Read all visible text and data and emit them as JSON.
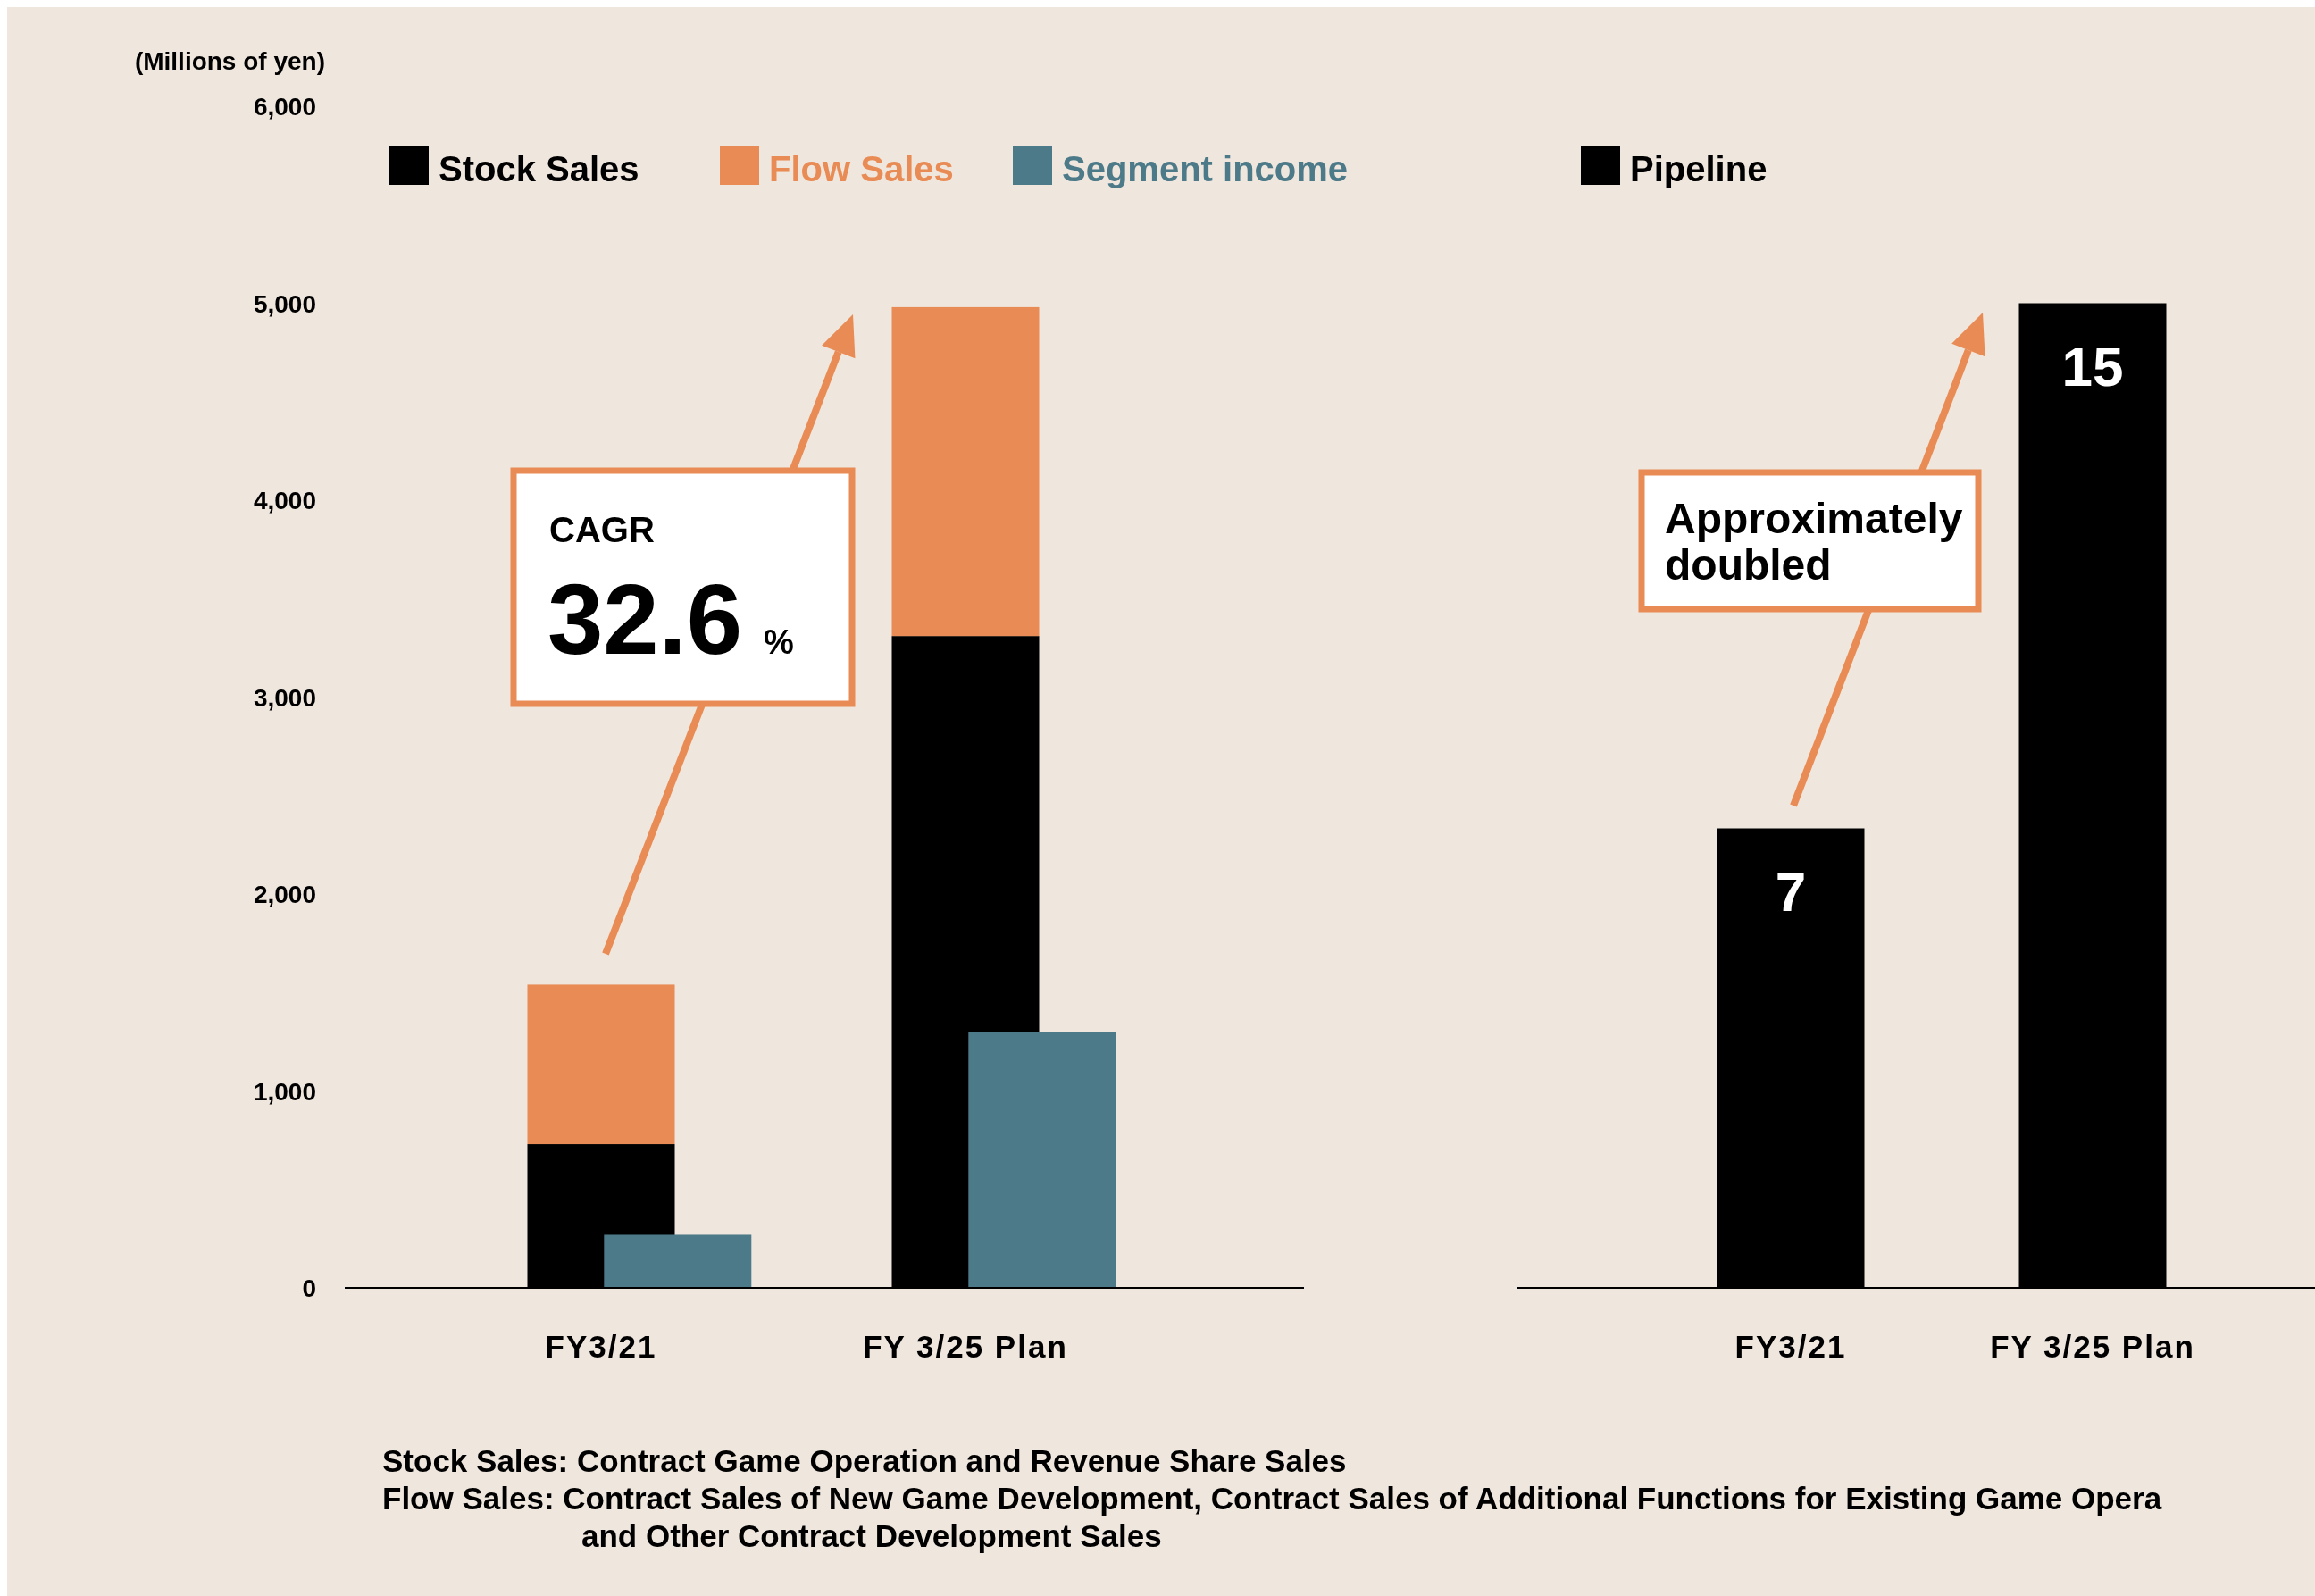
{
  "chart_data": [
    {
      "type": "bar",
      "ylabel": "(Millions of yen)",
      "categories": [
        "FY3/21",
        "FY 3/25 Plan"
      ],
      "stacked": true,
      "legend": "top",
      "grid": false,
      "ylim": [
        0,
        6000
      ],
      "yticks": [
        0,
        {
          "value": 1000,
          "label": "1,000"
        },
        {
          "value": 2000,
          "label": "2,000"
        },
        {
          "value": 3000,
          "label": "3,000"
        },
        {
          "value": 4000,
          "label": "4,000"
        },
        {
          "value": 5000,
          "label": "5,000"
        },
        {
          "value": 6000,
          "label": "6,000"
        }
      ],
      "series": [
        {
          "name": "Stock Sales",
          "color": "#000000",
          "values": [
            730,
            3310
          ]
        },
        {
          "name": "Flow Sales",
          "color": "#e98b54",
          "values": [
            810,
            1670
          ]
        }
      ],
      "annotations": [
        "CAGR",
        "32.6 %",
        "Stock Sales: Contract Game Operation and Revenue Share Sales",
        "Flow Sales: Contract Sales of New Game Development, Contract Sales of Additional Functions for Existing Game Opera",
        "and Other Contract Development Sales"
      ]
    },
    {
      "type": "bar",
      "categories": [
        null,
        null
      ],
      "legend": "top",
      "grid": false,
      "ylim": [
        0,
        6000
      ],
      "tick_labels": false,
      "series": [
        {
          "name": "Segment income",
          "color": "#4d7a89",
          "values": [
            270,
            1300
          ]
        }
      ]
    },
    {
      "type": "bar",
      "categories": [
        "FY3/21",
        "FY 3/25 Plan"
      ],
      "legend": "top",
      "grid": false,
      "tick_labels": "x",
      "data_labels": true,
      "series": [
        {
          "name": "Pipeline",
          "color": "#000000",
          "values": [
            7,
            15
          ]
        }
      ],
      "annotations": [
        "Approximately doubled"
      ]
    }
  ]
}
